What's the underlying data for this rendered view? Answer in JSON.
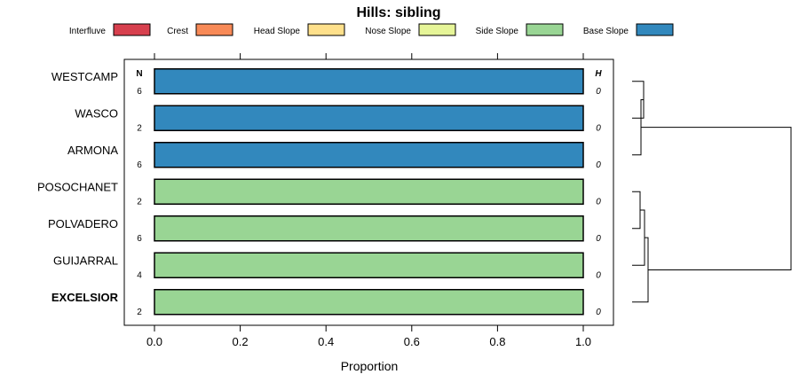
{
  "chart_data": {
    "type": "bar",
    "orientation": "horizontal",
    "stacked": true,
    "title": "Hills: sibling",
    "xlabel": "Proportion",
    "xlim": [
      -0.07,
      1.07
    ],
    "x_ticks": [
      0.0,
      0.2,
      0.4,
      0.6,
      0.8,
      1.0
    ],
    "x_tick_labels": [
      "0.0",
      "0.2",
      "0.4",
      "0.6",
      "0.8",
      "1.0"
    ],
    "n_header": "N",
    "h_header": "H",
    "legend": [
      {
        "name": "Interfluve",
        "color": "#d7404e"
      },
      {
        "name": "Crest",
        "color": "#f88a57"
      },
      {
        "name": "Head Slope",
        "color": "#fee08b"
      },
      {
        "name": "Nose Slope",
        "color": "#e6f598"
      },
      {
        "name": "Side Slope",
        "color": "#99d594"
      },
      {
        "name": "Base Slope",
        "color": "#3288bd"
      }
    ],
    "categories": [
      "WESTCAMP",
      "WASCO",
      "ARMONA",
      "POSOCHANET",
      "POLVADERO",
      "GUIJARRAL",
      "EXCELSIOR"
    ],
    "bold_category": "EXCELSIOR",
    "n": [
      "6",
      "2",
      "6",
      "2",
      "6",
      "4",
      "2"
    ],
    "h": [
      "0",
      "0",
      "0",
      "0",
      "0",
      "0",
      "0"
    ],
    "series": [
      {
        "name": "Interfluve",
        "values": [
          0,
          0,
          0,
          0,
          0,
          0,
          0
        ]
      },
      {
        "name": "Crest",
        "values": [
          0,
          0,
          0,
          0,
          0,
          0,
          0
        ]
      },
      {
        "name": "Head Slope",
        "values": [
          0,
          0,
          0,
          0,
          0,
          0,
          0
        ]
      },
      {
        "name": "Nose Slope",
        "values": [
          0,
          0,
          0,
          0,
          0,
          0,
          0
        ]
      },
      {
        "name": "Side Slope",
        "values": [
          0,
          0,
          0,
          1,
          1,
          1,
          1
        ]
      },
      {
        "name": "Base Slope",
        "values": [
          1,
          1,
          1,
          0,
          0,
          0,
          0
        ]
      }
    ],
    "dendrogram": {
      "description_free": true,
      "merges": [
        {
          "a": "WESTCAMP",
          "b": "WASCO",
          "height": 0.05
        },
        {
          "a": "ARMONA",
          "b": "WESTCAMP+WASCO",
          "height": 0.02
        },
        {
          "a": "POSOCHANET",
          "b": "POLVADERO",
          "height": 0.04
        },
        {
          "a": "GUIJARRAL",
          "b": "POSOCHANET+POLVADERO",
          "height": 0.06
        },
        {
          "a": "EXCELSIOR",
          "b": "GUIJARRAL+POSOCHANET+POLVADERO",
          "height": 0.1
        },
        {
          "a": "top",
          "b": "bottom",
          "height": 1.0
        }
      ]
    }
  }
}
